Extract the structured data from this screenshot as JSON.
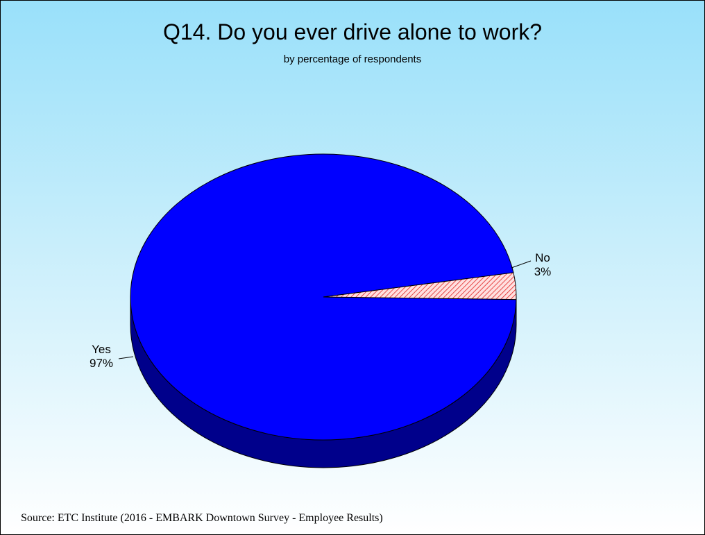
{
  "chart_data": {
    "type": "pie",
    "title": "Q14. Do you ever drive alone to work?",
    "subtitle": "by percentage of respondents",
    "slices": [
      {
        "label": "Yes",
        "value": 97,
        "value_label": "97%",
        "color": "#0000ff",
        "side_color": "#00008b"
      },
      {
        "label": "No",
        "value": 3,
        "value_label": "3%",
        "color": "#ffd0d0",
        "pattern_color": "#e02020"
      }
    ],
    "style": "3d",
    "legend": "none"
  },
  "source": "Source:  ETC Institute (2016 - EMBARK Downtown Survey - Employee Results)"
}
